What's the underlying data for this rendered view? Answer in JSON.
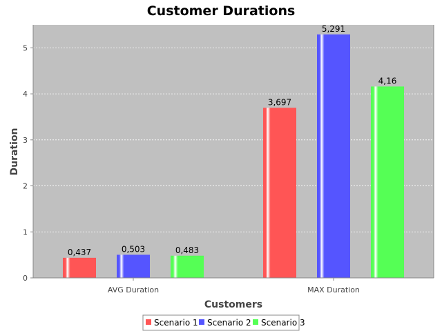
{
  "chart_data": {
    "type": "bar",
    "title": "Customer Durations",
    "xlabel": "Customers",
    "ylabel": "Duration",
    "categories": [
      "AVG Duration",
      "MAX Duration"
    ],
    "series": [
      {
        "name": "Scenario 1",
        "values": [
          0.437,
          3.697
        ],
        "labels": [
          "0,437",
          "3,697"
        ],
        "color": "#ff5555"
      },
      {
        "name": "Scenario 2",
        "values": [
          0.503,
          5.291
        ],
        "labels": [
          "0,503",
          "5,291"
        ],
        "color": "#5555ff"
      },
      {
        "name": "Scenario 3",
        "values": [
          0.483,
          4.16
        ],
        "labels": [
          "0,483",
          "4,16"
        ],
        "color": "#55ff55"
      }
    ],
    "ylim": [
      0,
      5.5
    ],
    "yticks": [
      0,
      1,
      2,
      3,
      4,
      5
    ],
    "yticklabels": [
      "0",
      "1",
      "2",
      "3",
      "4",
      "5"
    ],
    "grid": true,
    "legend": "bottom",
    "plot_background": "#c0c0c0"
  }
}
